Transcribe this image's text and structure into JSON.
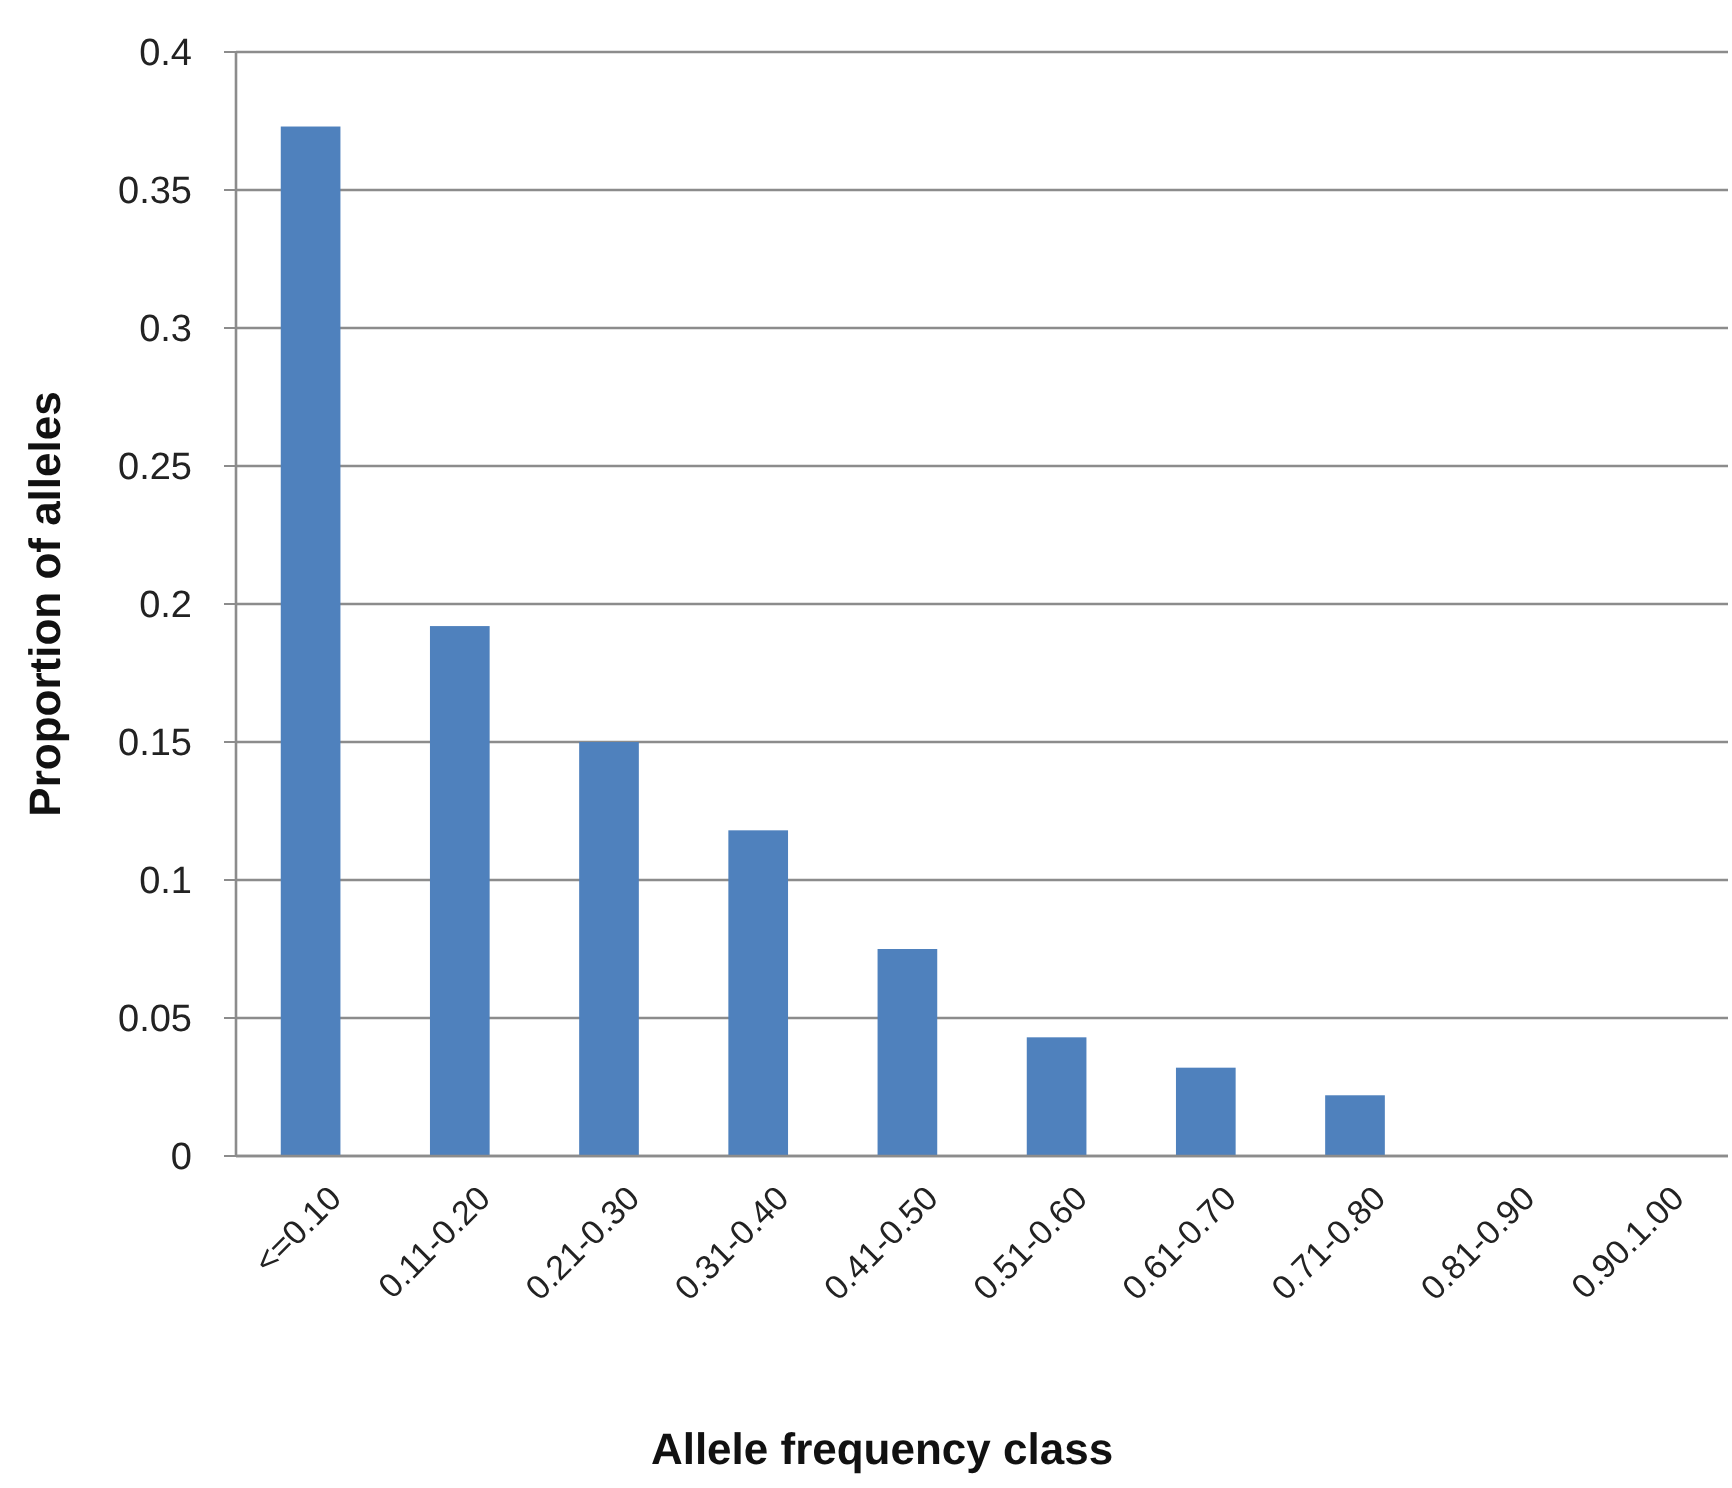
{
  "chart_data": {
    "type": "bar",
    "xlabel": "Allele frequency class",
    "ylabel": "Proportion of alleles",
    "categories": [
      "<=0.10",
      "0.11-0.20",
      "0.21-0.30",
      "0.31-0.40",
      "0.41-0.50",
      "0.51-0.60",
      "0.61-0.70",
      "0.71-0.80",
      "0.81-0.90",
      "0.90.1.00"
    ],
    "values": [
      0.373,
      0.192,
      0.15,
      0.118,
      0.075,
      0.043,
      0.032,
      0.022,
      0,
      0
    ],
    "color": "#4f81bd",
    "ylim": [
      0,
      0.4
    ],
    "yticks": [
      0,
      0.05,
      0.1,
      0.15,
      0.2,
      0.25,
      0.3,
      0.35,
      0.4
    ],
    "grid": "y"
  }
}
